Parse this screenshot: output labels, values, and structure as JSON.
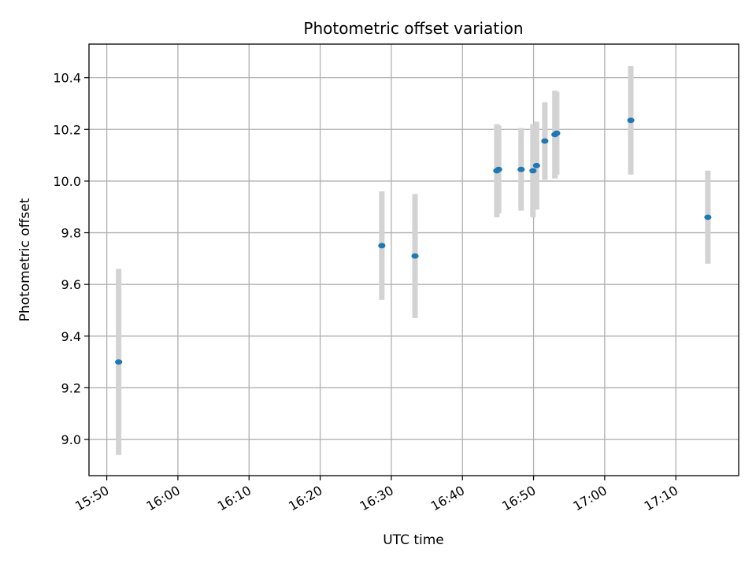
{
  "chart_data": {
    "type": "scatter",
    "title": "Photometric offset variation",
    "xlabel": "UTC time",
    "ylabel": "Photometric offset",
    "x_tick_labels": [
      "15:50",
      "16:00",
      "16:10",
      "16:20",
      "16:30",
      "16:40",
      "16:50",
      "17:00",
      "17:10"
    ],
    "y_tick_labels": [
      "9.0",
      "9.2",
      "9.4",
      "9.6",
      "9.8",
      "10.0",
      "10.2",
      "10.4"
    ],
    "xlim": [
      "15:47:30",
      "17:18:50"
    ],
    "ylim": [
      8.86,
      10.53
    ],
    "grid": true,
    "points": [
      {
        "t": "15:51:40",
        "y": 9.3,
        "err": 0.36
      },
      {
        "t": "16:28:40",
        "y": 9.75,
        "err": 0.21
      },
      {
        "t": "16:33:20",
        "y": 9.71,
        "err": 0.24
      },
      {
        "t": "16:44:50",
        "y": 10.04,
        "err": 0.18
      },
      {
        "t": "16:45:05",
        "y": 10.045,
        "err": 0.17
      },
      {
        "t": "16:48:15",
        "y": 10.045,
        "err": 0.16
      },
      {
        "t": "16:49:55",
        "y": 10.04,
        "err": 0.18
      },
      {
        "t": "16:50:25",
        "y": 10.06,
        "err": 0.17
      },
      {
        "t": "16:51:35",
        "y": 10.155,
        "err": 0.15
      },
      {
        "t": "16:53:00",
        "y": 10.18,
        "err": 0.17
      },
      {
        "t": "16:53:15",
        "y": 10.185,
        "err": 0.16
      },
      {
        "t": "17:03:40",
        "y": 10.235,
        "err": 0.21
      },
      {
        "t": "17:14:30",
        "y": 9.86,
        "err": 0.18
      }
    ],
    "colors": {
      "marker": "#1f77b4",
      "errorbar": "#d3d3d3",
      "grid": "#b0b0b0"
    }
  }
}
